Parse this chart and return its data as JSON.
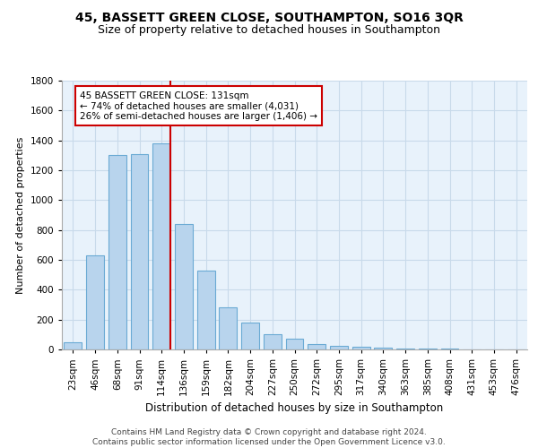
{
  "title": "45, BASSETT GREEN CLOSE, SOUTHAMPTON, SO16 3QR",
  "subtitle": "Size of property relative to detached houses in Southampton",
  "xlabel": "Distribution of detached houses by size in Southampton",
  "ylabel": "Number of detached properties",
  "categories": [
    "23sqm",
    "46sqm",
    "68sqm",
    "91sqm",
    "114sqm",
    "136sqm",
    "159sqm",
    "182sqm",
    "204sqm",
    "227sqm",
    "250sqm",
    "272sqm",
    "295sqm",
    "317sqm",
    "340sqm",
    "363sqm",
    "385sqm",
    "408sqm",
    "431sqm",
    "453sqm",
    "476sqm"
  ],
  "values": [
    50,
    630,
    1300,
    1310,
    1380,
    840,
    530,
    285,
    180,
    105,
    70,
    35,
    25,
    20,
    10,
    8,
    5,
    4,
    3,
    2,
    2
  ],
  "bar_color": "#b8d4ed",
  "bar_edgecolor": "#6aaad4",
  "grid_color": "#c8daea",
  "background_color": "#e8f2fb",
  "vline_color": "#cc0000",
  "annotation_text": "45 BASSETT GREEN CLOSE: 131sqm\n← 74% of detached houses are smaller (4,031)\n26% of semi-detached houses are larger (1,406) →",
  "annotation_box_facecolor": "#ffffff",
  "annotation_box_edgecolor": "#cc0000",
  "ylim": [
    0,
    1800
  ],
  "yticks": [
    0,
    200,
    400,
    600,
    800,
    1000,
    1200,
    1400,
    1600,
    1800
  ],
  "footer_line1": "Contains HM Land Registry data © Crown copyright and database right 2024.",
  "footer_line2": "Contains public sector information licensed under the Open Government Licence v3.0.",
  "title_fontsize": 10,
  "subtitle_fontsize": 9,
  "xlabel_fontsize": 8.5,
  "ylabel_fontsize": 8,
  "tick_fontsize": 7.5,
  "annotation_fontsize": 7.5,
  "footer_fontsize": 6.5
}
